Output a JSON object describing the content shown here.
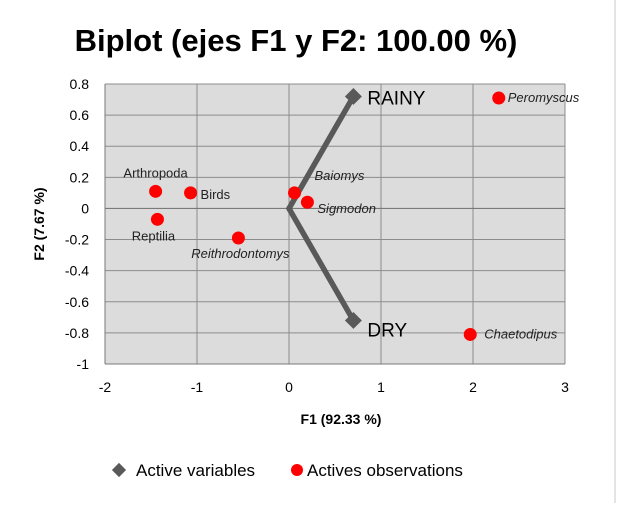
{
  "chart_data": {
    "type": "scatter",
    "title": "Biplot (ejes F1 y F2: 100.00 %)",
    "xlabel": "F1 (92.33 %)",
    "ylabel": "F2 (7.67 %)",
    "xlim": [
      -2,
      3
    ],
    "ylim": [
      -1,
      0.8
    ],
    "x_ticks": [
      "-2",
      "-1",
      "0",
      "1",
      "2",
      "3"
    ],
    "y_ticks": [
      "-1",
      "-0.8",
      "-0.6",
      "-0.4",
      "-0.2",
      "0",
      "0.2",
      "0.4",
      "0.6",
      "0.8"
    ],
    "grid": true,
    "active_variables": [
      {
        "label": "RAINY",
        "x": 0.7,
        "y": 0.72
      },
      {
        "label": "DRY",
        "x": 0.7,
        "y": -0.72
      }
    ],
    "observations": [
      {
        "label": "Peromyscus",
        "x": 2.28,
        "y": 0.71,
        "italic": true
      },
      {
        "label": "Baiomys",
        "x": 0.06,
        "y": 0.1,
        "italic": true
      },
      {
        "label": "Sigmodon",
        "x": 0.2,
        "y": 0.04,
        "italic": true
      },
      {
        "label": "Arthropoda",
        "x": -1.45,
        "y": 0.11,
        "italic": false
      },
      {
        "label": "Birds",
        "x": -1.07,
        "y": 0.1,
        "italic": false
      },
      {
        "label": "Reptilia",
        "x": -1.43,
        "y": -0.07,
        "italic": false
      },
      {
        "label": "Reithrodontomys",
        "x": -0.55,
        "y": -0.19,
        "italic": true
      },
      {
        "label": "Chaetodipus",
        "x": 1.97,
        "y": -0.81,
        "italic": true
      }
    ],
    "legend": {
      "placement": "bottom",
      "variables_label": "Active variables",
      "observations_label": "Actives observations"
    },
    "colors": {
      "observations": "#ff0000",
      "variables": "#595959",
      "plot_background": "#dcdcdc",
      "grid": "#8c8c8c"
    }
  }
}
